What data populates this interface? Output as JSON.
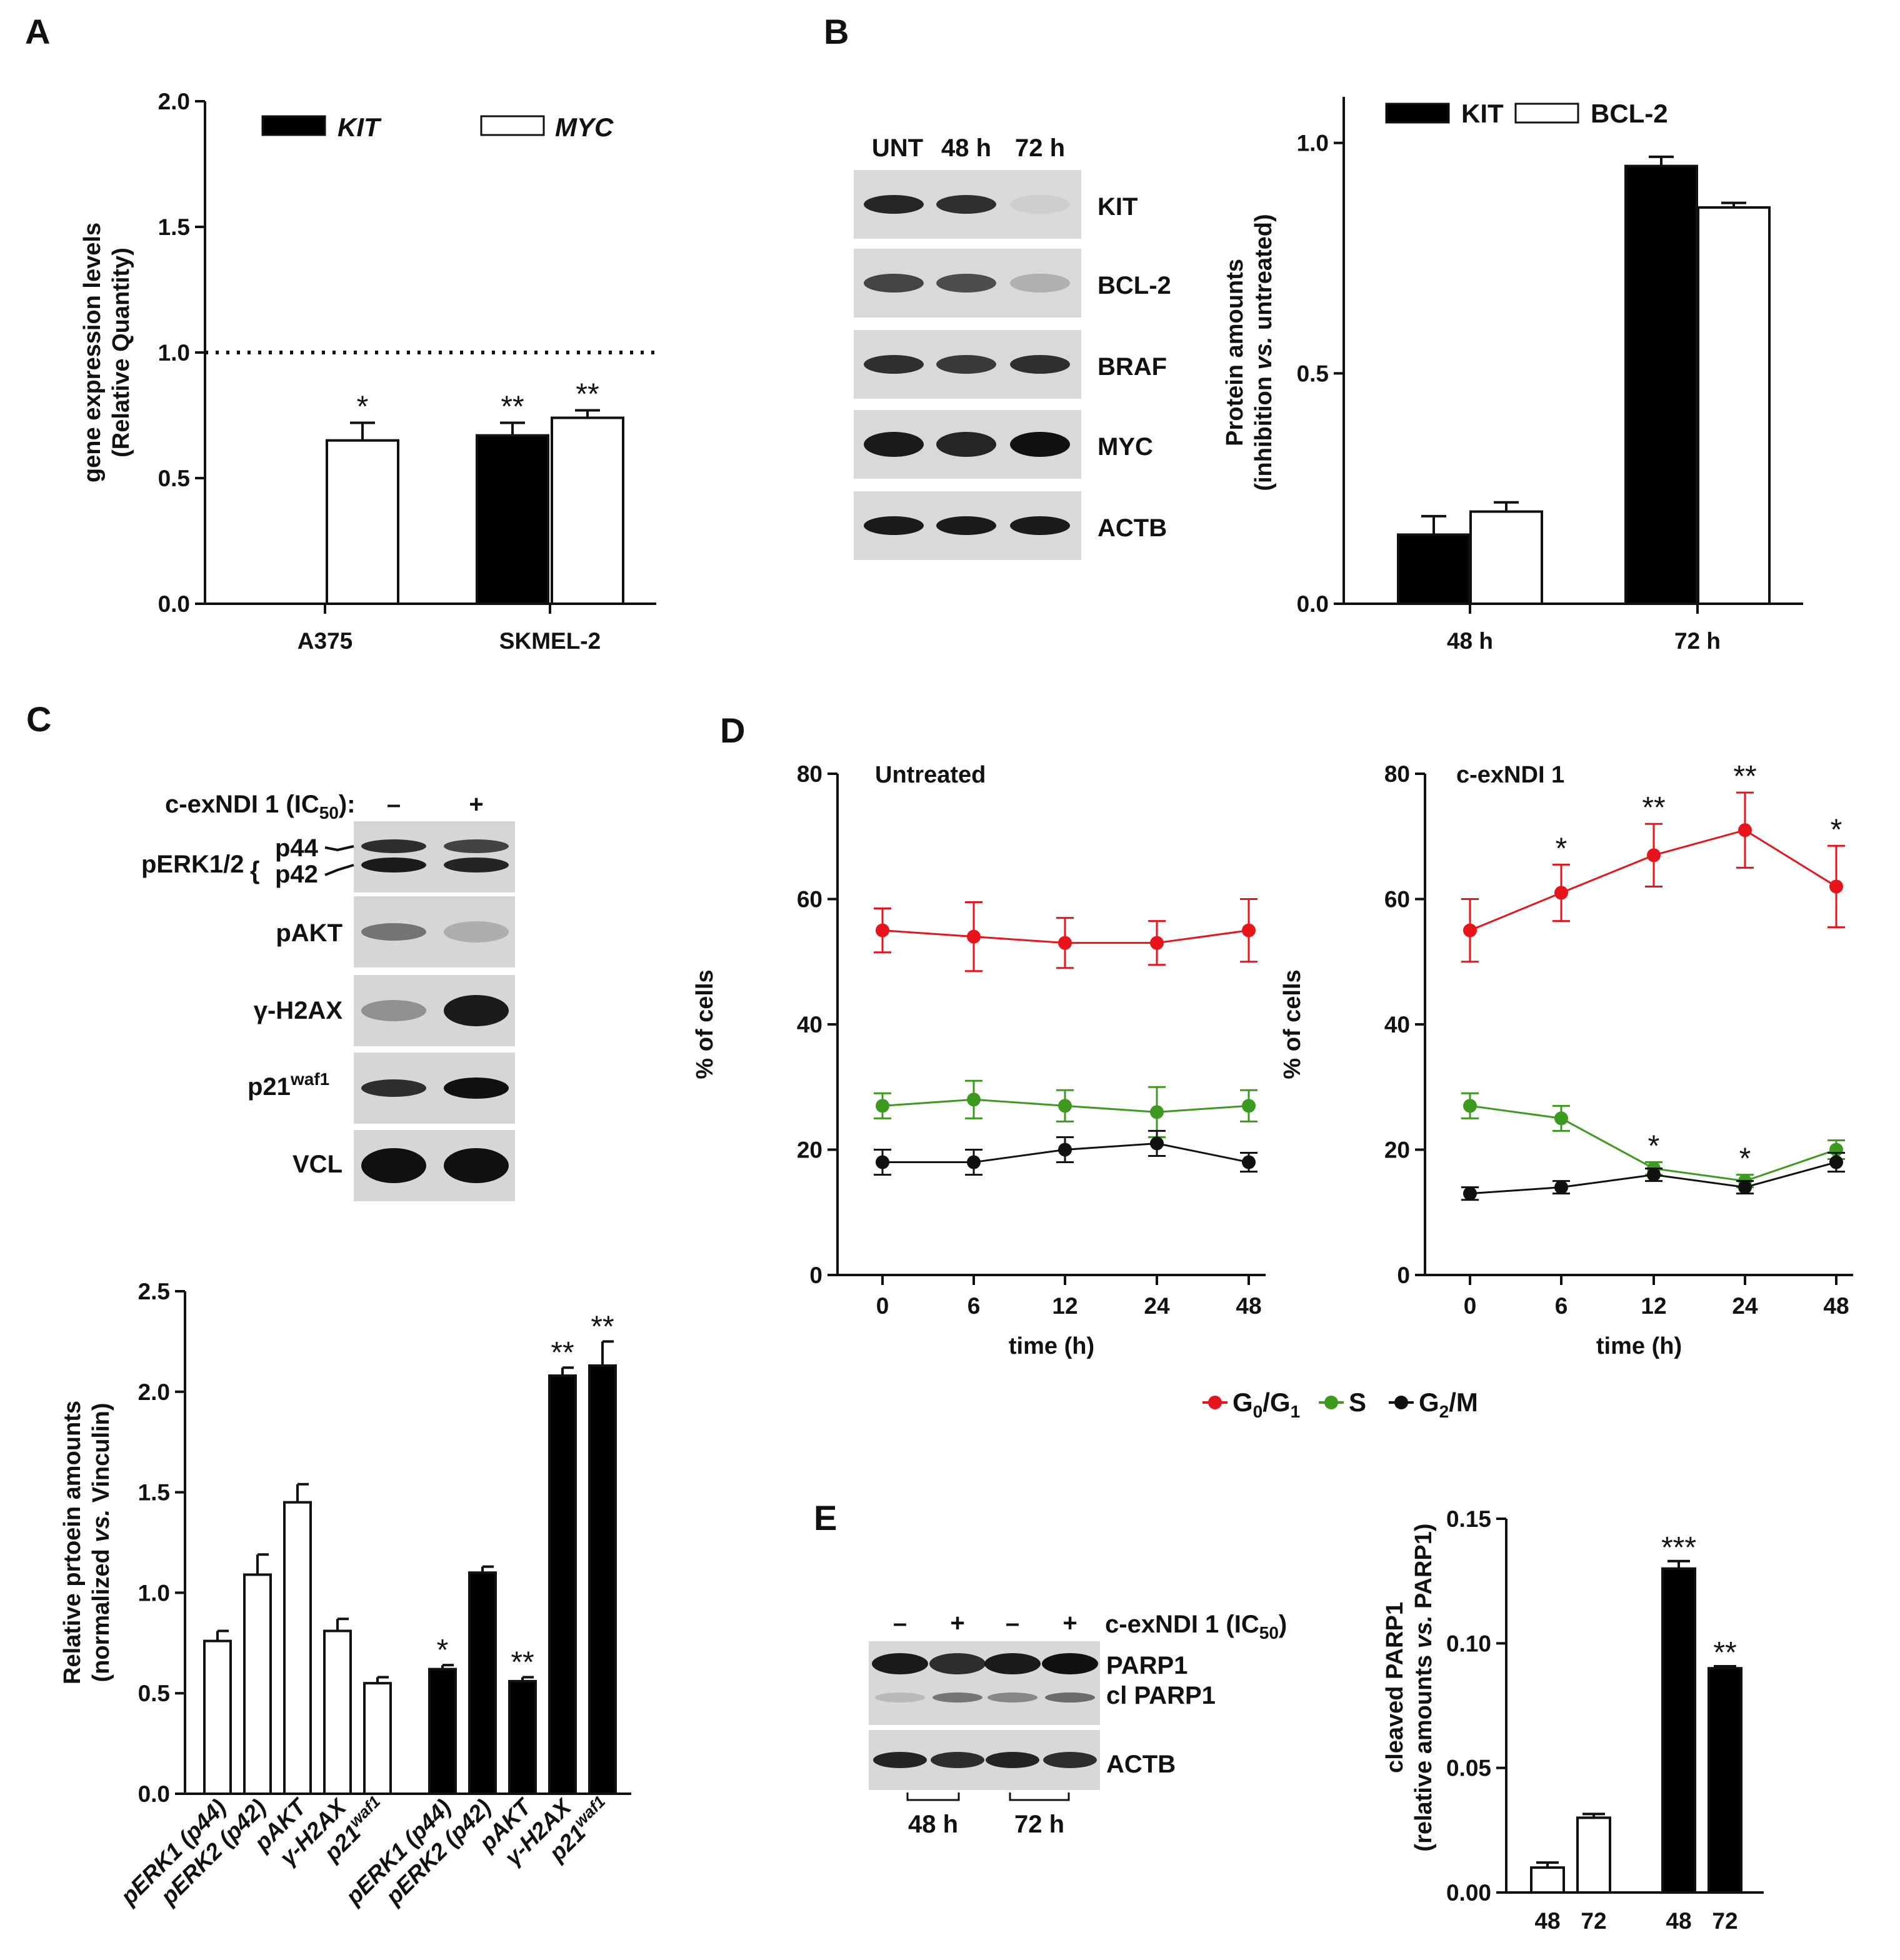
{
  "panels": {
    "A": "A",
    "B": "B",
    "C": "C",
    "D": "D",
    "E": "E"
  },
  "chart_data": [
    {
      "id": "A",
      "type": "bar",
      "categories": [
        "A375",
        "SKMEL-2"
      ],
      "series": [
        {
          "name": "KIT",
          "values": [
            null,
            0.67
          ],
          "errors": [
            null,
            0.05
          ],
          "fill": "#000000"
        },
        {
          "name": "MYC",
          "values": [
            0.65,
            0.74
          ],
          "errors": [
            0.07,
            0.03
          ],
          "fill": "#ffffff"
        }
      ],
      "significance": [
        {
          "category": 0,
          "series": 1,
          "label": "*"
        },
        {
          "category": 1,
          "series": 0,
          "label": "**"
        },
        {
          "category": 1,
          "series": 1,
          "label": "**"
        }
      ],
      "reference_line": 1.0,
      "ylabel": "gene expression levels",
      "ylabel2": "(Relative Quantity)",
      "ylim": [
        0,
        2.0
      ],
      "yticks": [
        "0.0",
        "0.5",
        "1.0",
        "1.5",
        "2.0"
      ],
      "legend": [
        "KIT",
        "MYC"
      ]
    },
    {
      "id": "B",
      "type": "bar",
      "categories": [
        "48 h",
        "72 h"
      ],
      "series": [
        {
          "name": "KIT",
          "values": [
            0.15,
            0.95
          ],
          "errors": [
            0.04,
            0.02
          ],
          "fill": "#000000"
        },
        {
          "name": "BCL-2",
          "values": [
            0.2,
            0.86
          ],
          "errors": [
            0.02,
            0.01
          ],
          "fill": "#ffffff"
        }
      ],
      "ylabel": "Protein amounts",
      "ylabel2_parts": [
        "(inhibition ",
        "vs.",
        " untreated)"
      ],
      "ylim": [
        0,
        1.1
      ],
      "yticks": [
        "0.0",
        "0.5",
        "1.0"
      ],
      "legend": [
        "KIT",
        "BCL-2"
      ]
    },
    {
      "id": "C",
      "type": "bar",
      "categories": [
        "pERK1 (p44)",
        "pERK2 (p42)",
        "pAKT",
        "γ-H2AX",
        "p21waf1",
        "pERK1 (p44)",
        "pERK2 (p42)",
        "pAKT",
        "γ-H2AX",
        "p21waf1"
      ],
      "values": [
        0.76,
        1.09,
        1.45,
        0.81,
        0.55,
        0.62,
        1.1,
        0.56,
        2.08,
        2.13
      ],
      "errors": [
        0.05,
        0.1,
        0.09,
        0.06,
        0.03,
        0.02,
        0.03,
        0.02,
        0.04,
        0.12
      ],
      "fills": [
        "#ffffff",
        "#ffffff",
        "#ffffff",
        "#ffffff",
        "#ffffff",
        "#000000",
        "#000000",
        "#000000",
        "#000000",
        "#000000"
      ],
      "significance": [
        "",
        "",
        "",
        "",
        "",
        "*",
        "",
        "**",
        "**",
        "**"
      ],
      "ylabel": "Relative prtoein amounts",
      "ylabel2_parts": [
        "(normalized ",
        "vs.",
        " Vinculin)"
      ],
      "ylim": [
        0,
        2.5
      ],
      "yticks": [
        "0.0",
        "0.5",
        "1.0",
        "1.5",
        "2.0",
        "2.5"
      ]
    },
    {
      "id": "D1",
      "type": "line",
      "title": "Untreated",
      "x": [
        "0",
        "6",
        "12",
        "24",
        "48"
      ],
      "series": [
        {
          "name": "G0/G1",
          "color": "#e8141c",
          "values": [
            55,
            54,
            53,
            53,
            55
          ],
          "errors": [
            3.5,
            5.5,
            4,
            3.5,
            5
          ]
        },
        {
          "name": "S",
          "color": "#3d9a1e",
          "values": [
            27,
            28,
            27,
            26,
            27
          ],
          "errors": [
            2,
            3,
            2.5,
            4,
            2.5
          ]
        },
        {
          "name": "G2/M",
          "color": "#111111",
          "values": [
            18,
            18,
            20,
            21,
            18
          ],
          "errors": [
            2,
            2,
            2,
            2,
            1.5
          ]
        }
      ],
      "xlabel": "time (h)",
      "ylabel": "% of cells",
      "ylim": [
        0,
        80
      ],
      "yticks": [
        "0",
        "20",
        "40",
        "60",
        "80"
      ]
    },
    {
      "id": "D2",
      "type": "line",
      "title": "c-exNDI 1",
      "x": [
        "0",
        "6",
        "12",
        "24",
        "48"
      ],
      "series": [
        {
          "name": "G0/G1",
          "color": "#e8141c",
          "values": [
            55,
            61,
            67,
            71,
            62
          ],
          "errors": [
            5,
            4.5,
            5,
            6,
            6.5
          ],
          "stars": [
            "",
            "*",
            "**",
            "**",
            "*"
          ]
        },
        {
          "name": "S",
          "color": "#3d9a1e",
          "values": [
            27,
            25,
            17,
            15,
            20
          ],
          "errors": [
            2,
            2,
            1,
            1,
            1.5
          ],
          "stars": [
            "",
            "",
            "*",
            "*",
            ""
          ]
        },
        {
          "name": "G2/M",
          "color": "#111111",
          "values": [
            13,
            14,
            16,
            14,
            18
          ],
          "errors": [
            1,
            1,
            1,
            1,
            1.5
          ]
        }
      ],
      "xlabel": "time (h)",
      "ylabel": "% of cells",
      "ylim": [
        0,
        80
      ],
      "yticks": [
        "0",
        "20",
        "40",
        "60",
        "80"
      ]
    },
    {
      "id": "E",
      "type": "bar",
      "categories": [
        "48",
        "72",
        "48",
        "72"
      ],
      "values": [
        0.01,
        0.03,
        0.13,
        0.09
      ],
      "errors": [
        0.002,
        0.0015,
        0.003,
        0.0008
      ],
      "fills": [
        "#ffffff",
        "#ffffff",
        "#000000",
        "#000000"
      ],
      "significance": [
        "",
        "",
        "***",
        "**"
      ],
      "ylabel": "cleaved PARP1",
      "ylabel2_parts": [
        "(relative amounts ",
        "vs.",
        " PARP1)"
      ],
      "ylim": [
        0,
        0.15
      ],
      "yticks": [
        "0.00",
        "0.05",
        "0.10",
        "0.15"
      ]
    }
  ],
  "legend_D": [
    {
      "main": "G",
      "sub": "0",
      "main2": "/G",
      "sub2": "1",
      "color": "#e8141c"
    },
    {
      "main": "S",
      "sub": "",
      "main2": "",
      "sub2": "",
      "color": "#3d9a1e"
    },
    {
      "main": "G",
      "sub": "2",
      "main2": "/M",
      "sub2": "",
      "color": "#111111"
    }
  ],
  "blots": {
    "B": {
      "lanes": [
        "UNT",
        "48 h",
        "72 h"
      ],
      "rows": [
        "KIT",
        "BCL-2",
        "BRAF",
        "MYC",
        "ACTB"
      ]
    },
    "C": {
      "treatment": "c-exNDI 1 (IC",
      "treatment_sub": "50",
      "treatment_end": "):",
      "lanes": [
        "–",
        "+"
      ],
      "group": "pERK1/2",
      "bands": [
        "p44",
        "p42"
      ],
      "rows": [
        "pAKT",
        "γ-H2AX",
        "p21",
        "VCL"
      ],
      "sup": "waf1"
    },
    "E": {
      "lanes": [
        "–",
        "+",
        "–",
        "+"
      ],
      "treatment": "c-exNDI 1 (IC",
      "treatment_sub": "50",
      "treatment_end": ")",
      "rows": [
        "PARP1",
        "cl PARP1",
        "ACTB"
      ],
      "timepoints": [
        "48 h",
        "72 h"
      ]
    }
  }
}
